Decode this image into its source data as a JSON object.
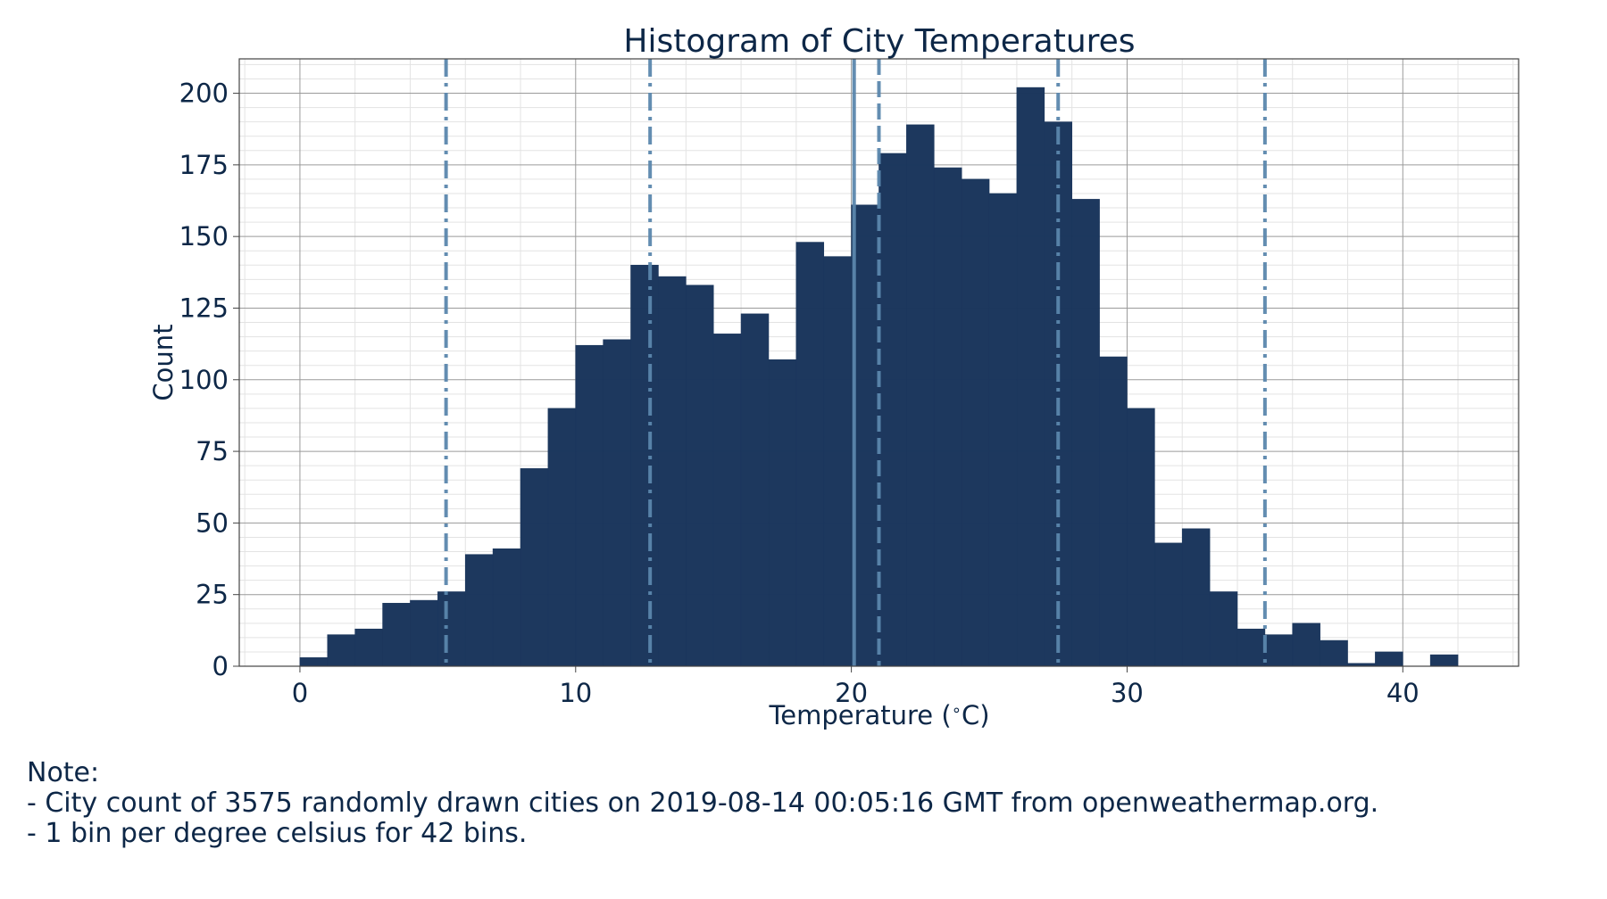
{
  "chart_data": {
    "type": "bar",
    "title": "Histogram of City Temperatures",
    "xlabel": "Temperature ($^\\circ$C)",
    "ylabel": "Count",
    "xlim": [
      -2.2,
      44.2
    ],
    "ylim": [
      0,
      212
    ],
    "xticks": [
      0,
      10,
      20,
      30,
      40
    ],
    "yticks": [
      0,
      25,
      50,
      75,
      100,
      125,
      150,
      175,
      200
    ],
    "grid": true,
    "bin_start": 0,
    "bin_width": 1,
    "values": [
      3,
      11,
      13,
      22,
      23,
      26,
      39,
      41,
      69,
      90,
      112,
      114,
      140,
      136,
      133,
      116,
      123,
      107,
      148,
      143,
      161,
      179,
      189,
      174,
      170,
      165,
      202,
      190,
      163,
      108,
      90,
      43,
      48,
      26,
      13,
      11,
      15,
      9,
      1,
      5,
      0,
      4
    ],
    "reference_lines": [
      {
        "x": 5.3,
        "style": "dashdot"
      },
      {
        "x": 12.7,
        "style": "dashdot"
      },
      {
        "x": 20.1,
        "style": "solid"
      },
      {
        "x": 21.0,
        "style": "dashed"
      },
      {
        "x": 27.5,
        "style": "dashdot"
      },
      {
        "x": 35.0,
        "style": "dashdot"
      }
    ],
    "colors": {
      "bar": "#1b365d",
      "reference_line": "#5b87ad",
      "text": "#0d2747"
    }
  },
  "note": {
    "heading": "Note:",
    "lines": [
      "- City count of 3575 randomly drawn cities on 2019-08-14 00:05:16 GMT from openweathermap.org.",
      "- 1 bin per degree celsius for 42 bins."
    ]
  }
}
